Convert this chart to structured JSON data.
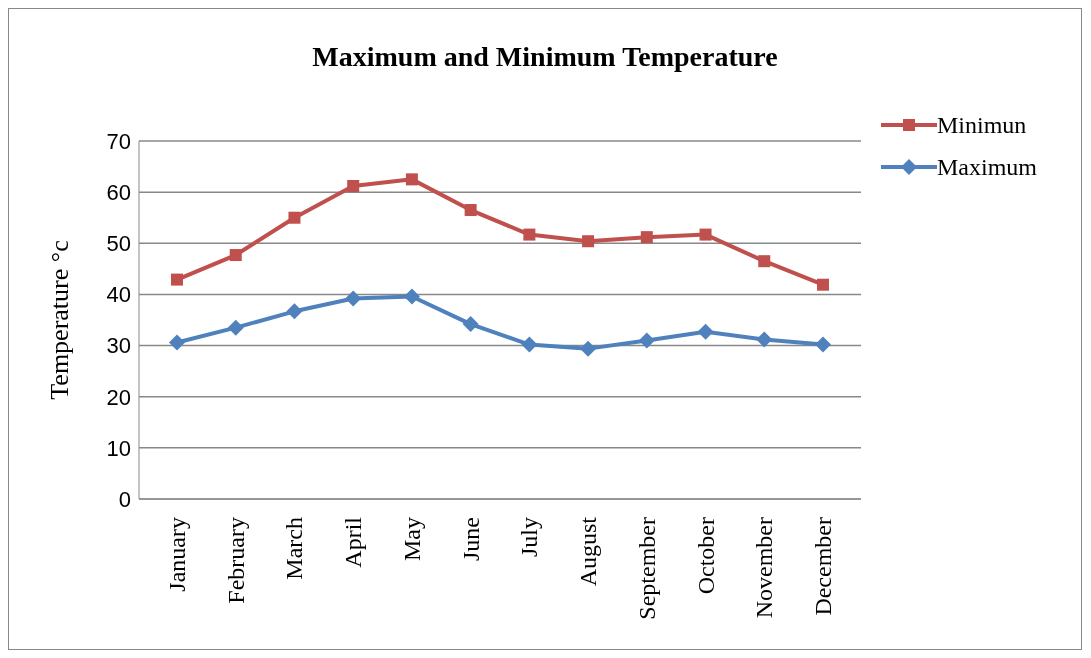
{
  "chart_data": {
    "type": "line",
    "title": "Maximum and Minimum Temperature",
    "ylabel": "Temperature °c",
    "categories": [
      "January",
      "February",
      "March",
      "April",
      "May",
      "June",
      "July",
      "August",
      "September",
      "October",
      "November",
      "December"
    ],
    "series": [
      {
        "name": "Minimun",
        "color": "#c0504d",
        "marker": "square",
        "values": [
          42.9,
          47.7,
          55.0,
          61.2,
          62.5,
          56.5,
          51.7,
          50.4,
          51.2,
          51.7,
          46.5,
          41.9
        ]
      },
      {
        "name": "Maximum",
        "color": "#4f81bd",
        "marker": "diamond",
        "values": [
          30.6,
          33.5,
          36.7,
          39.2,
          39.6,
          34.2,
          30.2,
          29.4,
          31.0,
          32.7,
          31.2,
          30.2
        ]
      }
    ],
    "ylim": [
      0,
      70
    ],
    "yticks": [
      0,
      10,
      20,
      30,
      40,
      50,
      60,
      70
    ],
    "grid": "y",
    "legend": "top right",
    "line_style": "solid"
  }
}
